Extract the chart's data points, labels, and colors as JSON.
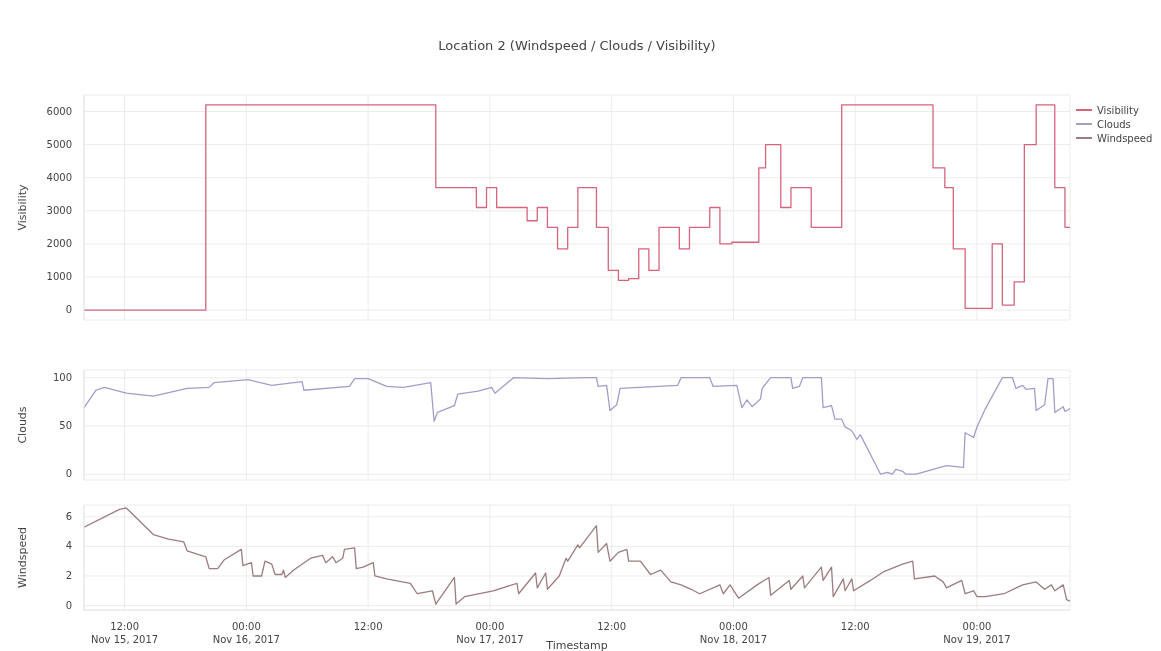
{
  "chart_data": [
    {
      "type": "step",
      "title": "Location 2 (Windspeed / Clouds / Visibility)",
      "ylabel": "Visibility",
      "legend": "top right",
      "grid": true,
      "tick_labels": "y",
      "xlim": [
        "2017-11-15T08:00",
        "2017-11-19T09:10"
      ],
      "xticks": [
        {
          "value": "2017-11-15T12:00",
          "label": null
        },
        {
          "value": "2017-11-16T00:00",
          "label": null
        },
        {
          "value": "2017-11-16T12:00",
          "label": null
        },
        {
          "value": "2017-11-17T00:00",
          "label": null
        },
        {
          "value": "2017-11-17T12:00",
          "label": null
        },
        {
          "value": "2017-11-18T00:00",
          "label": null
        },
        {
          "value": "2017-11-18T12:00",
          "label": null
        },
        {
          "value": "2017-11-19T00:00",
          "label": null
        }
      ],
      "ylim": [
        -300,
        6500
      ],
      "yticks": [
        0,
        1000,
        2000,
        3000,
        4000,
        5000,
        6000
      ],
      "x": [
        "2017-11-15T08:00",
        "2017-11-15T20:00",
        "2017-11-16T18:40",
        "2017-11-16T22:40",
        "2017-11-16T23:40",
        "2017-11-17T00:40",
        "2017-11-17T03:40",
        "2017-11-17T04:40",
        "2017-11-17T05:40",
        "2017-11-17T06:40",
        "2017-11-17T07:40",
        "2017-11-17T08:40",
        "2017-11-17T10:30",
        "2017-11-17T11:40",
        "2017-11-17T12:40",
        "2017-11-17T13:40",
        "2017-11-17T14:40",
        "2017-11-17T15:40",
        "2017-11-17T16:40",
        "2017-11-17T18:40",
        "2017-11-17T19:40",
        "2017-11-17T21:40",
        "2017-11-17T22:40",
        "2017-11-17T23:50",
        "2017-11-18T02:30",
        "2017-11-18T03:10",
        "2017-11-18T04:40",
        "2017-11-18T05:40",
        "2017-11-18T07:40",
        "2017-11-18T10:40",
        "2017-11-18T19:40",
        "2017-11-18T20:50",
        "2017-11-18T21:40",
        "2017-11-18T22:50",
        "2017-11-19T01:30",
        "2017-11-19T02:30",
        "2017-11-19T03:40",
        "2017-11-19T04:40",
        "2017-11-19T05:50",
        "2017-11-19T07:40",
        "2017-11-19T08:40",
        "2017-11-19T09:10"
      ],
      "series": [
        {
          "name": "Visibility",
          "color": "#d6657c",
          "values": [
            0,
            6200,
            3700,
            3100,
            3700,
            3100,
            2700,
            3100,
            2500,
            1850,
            2500,
            3700,
            2500,
            1200,
            900,
            950,
            1850,
            1200,
            2500,
            1850,
            2500,
            3100,
            2000,
            2050,
            4300,
            5000,
            3100,
            3700,
            2500,
            6200,
            4300,
            3700,
            1850,
            50,
            2000,
            150,
            850,
            5000,
            6200,
            3700,
            2500,
            2500
          ]
        }
      ]
    },
    {
      "type": "line",
      "ylabel": "Clouds",
      "grid": true,
      "tick_labels": "y",
      "xlim": [
        "2017-11-15T08:00",
        "2017-11-19T09:10"
      ],
      "xticks": [
        {
          "value": "2017-11-15T12:00",
          "label": null
        },
        {
          "value": "2017-11-16T00:00",
          "label": null
        },
        {
          "value": "2017-11-16T12:00",
          "label": null
        },
        {
          "value": "2017-11-17T00:00",
          "label": null
        },
        {
          "value": "2017-11-17T12:00",
          "label": null
        },
        {
          "value": "2017-11-18T00:00",
          "label": null
        },
        {
          "value": "2017-11-18T12:00",
          "label": null
        },
        {
          "value": "2017-11-19T00:00",
          "label": null
        }
      ],
      "ylim": [
        -6,
        108
      ],
      "yticks": [
        0,
        50,
        100
      ],
      "x": [
        "2017-11-15T08:00",
        "2017-11-15T09:10",
        "2017-11-15T10:00",
        "2017-11-15T12:10",
        "2017-11-15T14:50",
        "2017-11-15T18:10",
        "2017-11-15T20:20",
        "2017-11-15T20:50",
        "2017-11-16T00:10",
        "2017-11-16T02:30",
        "2017-11-16T05:30",
        "2017-11-16T05:40",
        "2017-11-16T10:10",
        "2017-11-16T10:40",
        "2017-11-16T12:00",
        "2017-11-16T13:50",
        "2017-11-16T15:30",
        "2017-11-16T18:10",
        "2017-11-16T18:30",
        "2017-11-16T18:50",
        "2017-11-16T20:30",
        "2017-11-16T20:50",
        "2017-11-16T22:50",
        "2017-11-17T00:10",
        "2017-11-17T00:30",
        "2017-11-17T02:20",
        "2017-11-17T05:40",
        "2017-11-17T09:30",
        "2017-11-17T10:30",
        "2017-11-17T10:40",
        "2017-11-17T11:30",
        "2017-11-17T11:50",
        "2017-11-17T12:30",
        "2017-11-17T12:50",
        "2017-11-17T18:30",
        "2017-11-17T18:50",
        "2017-11-17T21:40",
        "2017-11-17T22:00",
        "2017-11-18T00:20",
        "2017-11-18T00:50",
        "2017-11-18T01:20",
        "2017-11-18T01:50",
        "2017-11-18T02:40",
        "2017-11-18T02:50",
        "2017-11-18T03:40",
        "2017-11-18T05:40",
        "2017-11-18T05:50",
        "2017-11-18T06:30",
        "2017-11-18T06:50",
        "2017-11-18T08:40",
        "2017-11-18T08:50",
        "2017-11-18T09:40",
        "2017-11-18T10:00",
        "2017-11-18T10:40",
        "2017-11-18T11:00",
        "2017-11-18T11:40",
        "2017-11-18T12:10",
        "2017-11-18T12:30",
        "2017-11-18T14:30",
        "2017-11-18T15:10",
        "2017-11-18T15:40",
        "2017-11-18T16:00",
        "2017-11-18T16:40",
        "2017-11-18T17:00",
        "2017-11-18T18:00",
        "2017-11-18T21:00",
        "2017-11-18T22:40",
        "2017-11-18T22:50",
        "2017-11-18T23:40",
        "2017-11-19T00:00",
        "2017-11-19T00:50",
        "2017-11-19T02:30",
        "2017-11-19T03:30",
        "2017-11-19T03:50",
        "2017-11-19T04:30",
        "2017-11-19T04:50",
        "2017-11-19T05:40",
        "2017-11-19T05:50",
        "2017-11-19T06:40",
        "2017-11-19T07:00",
        "2017-11-19T07:30",
        "2017-11-19T07:40",
        "2017-11-19T08:30",
        "2017-11-19T08:40",
        "2017-11-19T09:10"
      ],
      "series": [
        {
          "name": "Clouds",
          "color": "#a79bc9",
          "values": [
            69,
            87,
            90,
            84,
            81,
            89,
            90,
            95,
            98,
            92,
            96,
            87,
            91,
            99,
            99,
            91,
            90,
            95,
            55,
            64,
            71,
            83,
            86,
            90,
            84,
            100,
            99,
            100,
            100,
            91,
            92,
            66,
            72,
            89,
            92,
            100,
            100,
            91,
            92,
            69,
            77,
            70,
            78,
            89,
            100,
            100,
            89,
            91,
            100,
            100,
            69,
            71,
            57,
            57,
            49,
            45,
            36,
            41,
            0,
            2,
            0,
            5,
            3,
            0,
            0,
            9,
            7,
            43,
            38,
            49,
            68,
            100,
            100,
            89,
            92,
            88,
            89,
            66,
            72,
            99,
            99,
            64,
            70,
            65,
            68
          ]
        }
      ]
    },
    {
      "type": "line",
      "ylabel": "Windspeed",
      "xlabel": "Timestamp",
      "grid": true,
      "xlim": [
        "2017-11-15T08:00",
        "2017-11-19T09:10"
      ],
      "xticks": [
        {
          "value": "2017-11-15T12:00",
          "label": "12:00 Nov 15, 2017"
        },
        {
          "value": "2017-11-16T00:00",
          "label": "00:00 Nov 16, 2017"
        },
        {
          "value": "2017-11-16T12:00",
          "label": "12:00"
        },
        {
          "value": "2017-11-17T00:00",
          "label": "00:00 Nov 17, 2017"
        },
        {
          "value": "2017-11-17T12:00",
          "label": "12:00"
        },
        {
          "value": "2017-11-18T00:00",
          "label": "00:00 Nov 18, 2017"
        },
        {
          "value": "2017-11-18T12:00",
          "label": "12:00"
        },
        {
          "value": "2017-11-19T00:00",
          "label": "00:00 Nov 19, 2017"
        }
      ],
      "ylim": [
        -0.3,
        6.8
      ],
      "yticks": [
        0,
        2,
        4,
        6
      ],
      "x": [
        "2017-11-15T08:00",
        "2017-11-15T11:30",
        "2017-11-15T12:10",
        "2017-11-15T14:50",
        "2017-11-15T16:20",
        "2017-11-15T17:50",
        "2017-11-15T18:10",
        "2017-11-15T20:00",
        "2017-11-15T20:20",
        "2017-11-15T21:10",
        "2017-11-15T21:50",
        "2017-11-15T23:30",
        "2017-11-15T23:40",
        "2017-11-16T00:30",
        "2017-11-16T00:40",
        "2017-11-16T01:30",
        "2017-11-16T01:50",
        "2017-11-16T02:30",
        "2017-11-16T02:50",
        "2017-11-16T03:30",
        "2017-11-16T03:40",
        "2017-11-16T03:50",
        "2017-11-16T04:40",
        "2017-11-16T06:20",
        "2017-11-16T07:30",
        "2017-11-16T07:50",
        "2017-11-16T08:30",
        "2017-11-16T08:50",
        "2017-11-16T09:30",
        "2017-11-16T09:40",
        "2017-11-16T10:40",
        "2017-11-16T10:50",
        "2017-11-16T11:30",
        "2017-11-16T12:30",
        "2017-11-16T12:40",
        "2017-11-16T13:50",
        "2017-11-16T16:10",
        "2017-11-16T16:50",
        "2017-11-16T18:20",
        "2017-11-16T18:40",
        "2017-11-16T20:30",
        "2017-11-16T20:40",
        "2017-11-16T21:30",
        "2017-11-17T00:20",
        "2017-11-17T02:40",
        "2017-11-17T02:50",
        "2017-11-17T04:30",
        "2017-11-17T04:40",
        "2017-11-17T05:30",
        "2017-11-17T05:40",
        "2017-11-17T06:50",
        "2017-11-17T07:30",
        "2017-11-17T07:40",
        "2017-11-17T08:40",
        "2017-11-17T08:50",
        "2017-11-17T10:30",
        "2017-11-17T10:40",
        "2017-11-17T11:30",
        "2017-11-17T11:50",
        "2017-11-17T12:40",
        "2017-11-17T13:30",
        "2017-11-17T13:40",
        "2017-11-17T14:50",
        "2017-11-17T15:50",
        "2017-11-17T16:50",
        "2017-11-17T17:50",
        "2017-11-17T18:50",
        "2017-11-17T19:50",
        "2017-11-17T20:40",
        "2017-11-17T22:40",
        "2017-11-17T23:00",
        "2017-11-17T23:40",
        "2017-11-18T00:30",
        "2017-11-18T02:20",
        "2017-11-18T03:30",
        "2017-11-18T03:40",
        "2017-11-18T05:30",
        "2017-11-18T05:40",
        "2017-11-18T06:50",
        "2017-11-18T07:00",
        "2017-11-18T08:40",
        "2017-11-18T08:50",
        "2017-11-18T09:40",
        "2017-11-18T09:50",
        "2017-11-18T10:50",
        "2017-11-18T11:00",
        "2017-11-18T11:40",
        "2017-11-18T11:50",
        "2017-11-18T13:30",
        "2017-11-18T14:50",
        "2017-11-18T16:40",
        "2017-11-18T17:40",
        "2017-11-18T17:50",
        "2017-11-18T19:50",
        "2017-11-18T20:40",
        "2017-11-18T21:00",
        "2017-11-18T22:30",
        "2017-11-18T22:50",
        "2017-11-18T23:40",
        "2017-11-19T00:00",
        "2017-11-19T00:50",
        "2017-11-19T02:40",
        "2017-11-19T04:30",
        "2017-11-19T05:50",
        "2017-11-19T06:40",
        "2017-11-19T07:20",
        "2017-11-19T07:40",
        "2017-11-19T08:30",
        "2017-11-19T08:50",
        "2017-11-19T09:10"
      ],
      "series": [
        {
          "name": "Windspeed",
          "color": "#9b7d80",
          "values": [
            5.3,
            6.5,
            6.6,
            4.8,
            4.5,
            4.3,
            3.7,
            3.3,
            2.5,
            2.5,
            3.1,
            3.8,
            2.7,
            2.9,
            2.0,
            2.0,
            3.0,
            2.8,
            2.1,
            2.1,
            2.4,
            1.9,
            2.4,
            3.2,
            3.4,
            2.9,
            3.3,
            2.9,
            3.2,
            3.8,
            3.9,
            2.5,
            2.6,
            2.9,
            2.0,
            1.8,
            1.5,
            0.8,
            1.0,
            0.1,
            1.9,
            0.1,
            0.6,
            1.0,
            1.5,
            0.8,
            2.2,
            1.2,
            2.2,
            1.1,
            2.0,
            3.2,
            3.0,
            4.1,
            3.9,
            5.4,
            3.6,
            4.2,
            3.0,
            3.6,
            3.8,
            3.0,
            3.0,
            2.1,
            2.4,
            1.6,
            1.4,
            1.1,
            0.8,
            1.4,
            0.8,
            1.4,
            0.5,
            1.4,
            1.9,
            0.7,
            1.7,
            1.1,
            2.0,
            1.2,
            2.6,
            1.7,
            2.6,
            0.6,
            1.8,
            1.0,
            1.8,
            1.0,
            1.7,
            2.3,
            2.8,
            3.0,
            1.8,
            2.0,
            1.6,
            1.2,
            1.7,
            0.8,
            1.0,
            0.6,
            0.6,
            0.8,
            1.4,
            1.6,
            1.1,
            1.4,
            1.0,
            1.4,
            0.4,
            0.3
          ]
        }
      ]
    }
  ]
}
